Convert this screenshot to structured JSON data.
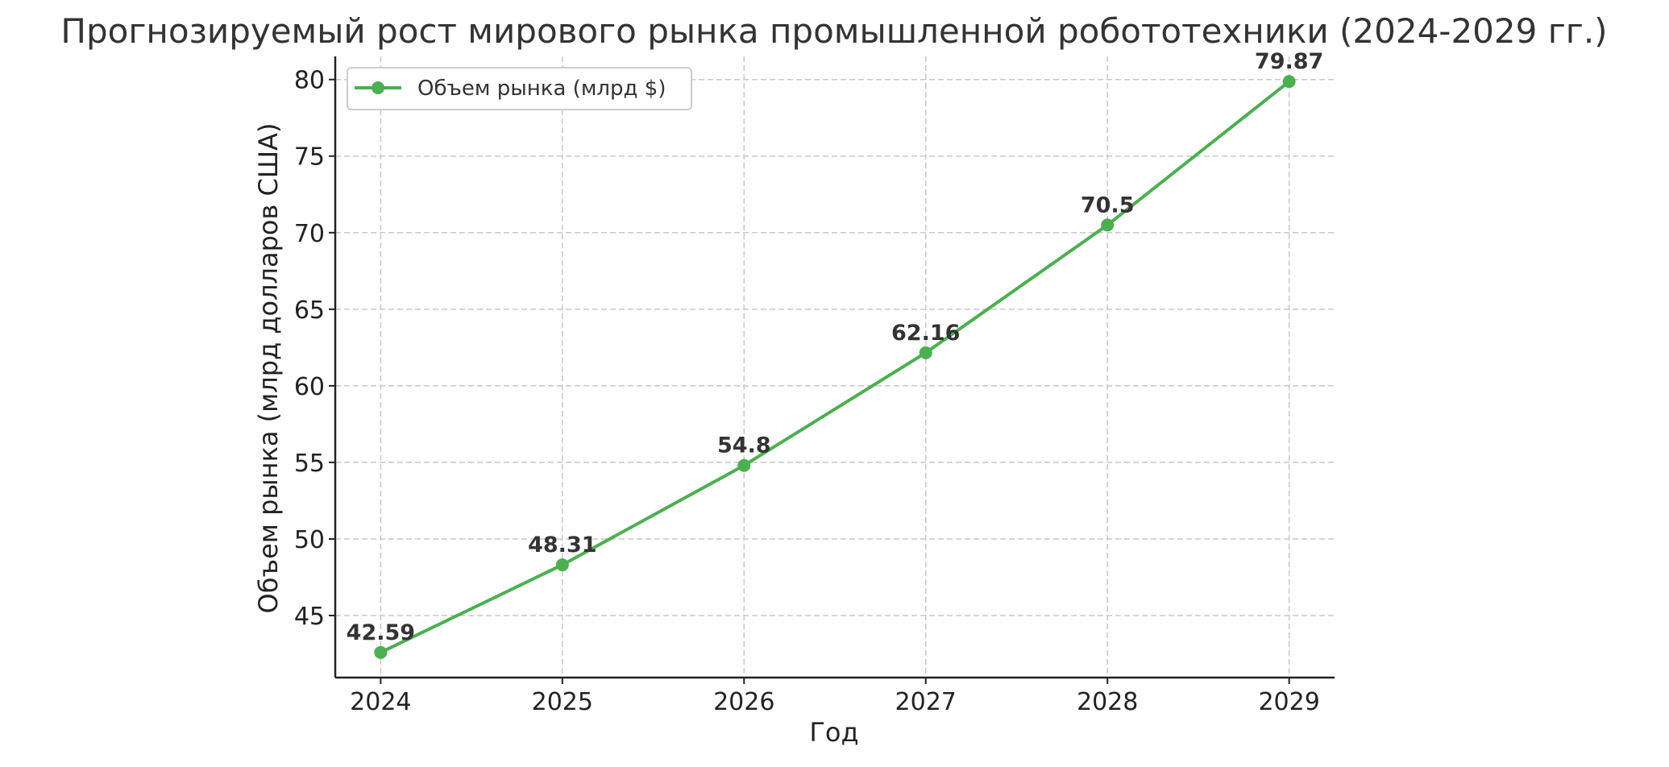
{
  "chart_data": {
    "type": "line",
    "title": "Прогнозируемый рост мирового рынка промышленной робототехники (2024-2029 гг.)",
    "xlabel": "Год",
    "ylabel": "Объем рынка (млрд долларов США)",
    "categories": [
      "2024",
      "2025",
      "2026",
      "2027",
      "2028",
      "2029"
    ],
    "x": [
      2024,
      2025,
      2026,
      2027,
      2028,
      2029
    ],
    "series": [
      {
        "name": "Объем рынка (млрд $)",
        "values": [
          42.59,
          48.31,
          54.8,
          62.16,
          70.5,
          79.87
        ],
        "color": "#4caf50",
        "marker": "circle"
      }
    ],
    "data_labels": [
      "42.59",
      "48.31",
      "54.8",
      "62.16",
      "70.5",
      "79.87"
    ],
    "yticks": [
      45,
      50,
      55,
      60,
      65,
      70,
      75,
      80
    ],
    "ytick_labels": [
      "45",
      "50",
      "55",
      "60",
      "65",
      "70",
      "75",
      "80"
    ],
    "xtick_labels": [
      "2024",
      "2025",
      "2026",
      "2027",
      "2028",
      "2029"
    ],
    "xlim": [
      2023.75,
      2029.25
    ],
    "ylim": [
      40.95,
      81.51
    ],
    "grid": true,
    "legend_position": "top-left"
  }
}
